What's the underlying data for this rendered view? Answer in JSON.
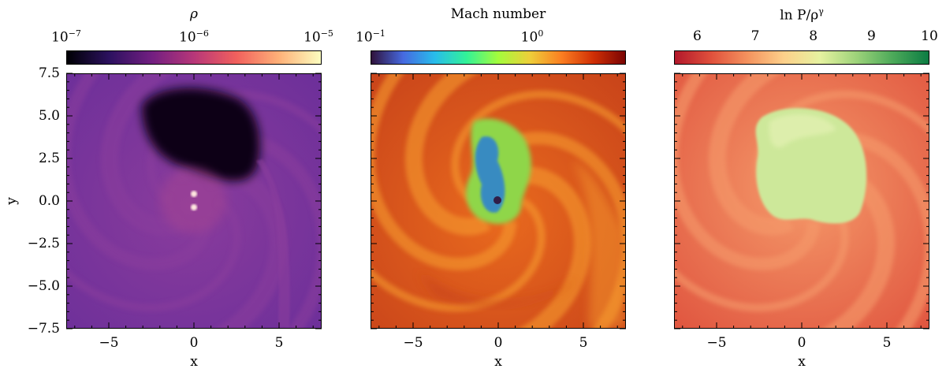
{
  "panels": [
    {
      "colorbar_title": "ρ",
      "colorbar_ticks": [
        {
          "base": "10",
          "exp": "−7"
        },
        {
          "base": "10",
          "exp": "−6"
        },
        {
          "base": "10",
          "exp": "−5"
        }
      ],
      "colormap": [
        "#000004",
        "#2c115f",
        "#721f81",
        "#b73779",
        "#f1605d",
        "#feb078",
        "#fcfdbf"
      ],
      "field_colors": {
        "background": "#6c2f9a",
        "arm": "#8a3c9c",
        "void": "#0c0618",
        "halo": "#b24a8e",
        "core": "#ffe8e0"
      },
      "xlabel": "x",
      "xticks": [
        "−5",
        "0",
        "5"
      ]
    },
    {
      "colorbar_title": "Mach number",
      "colorbar_ticks": [
        {
          "base": "10",
          "exp": "−1"
        },
        {
          "base": "10",
          "exp": "0"
        }
      ],
      "colormap": [
        "#30123b",
        "#4669e0",
        "#28bceb",
        "#32f298",
        "#a4fc3c",
        "#eecf3a",
        "#fb7e21",
        "#d02f05",
        "#7a0403"
      ],
      "field_colors": {
        "background": "#e96a1e",
        "arm": "#f59a2e",
        "dark": "#c8431a",
        "green": "#8fd64a",
        "blue": "#2b7fd6"
      },
      "xlabel": "x",
      "xticks": [
        "−5",
        "0",
        "5"
      ]
    },
    {
      "colorbar_title": "ln P/ρ",
      "colorbar_title_sup": "γ",
      "colorbar_ticks": [
        {
          "base": "6"
        },
        {
          "base": "7"
        },
        {
          "base": "8"
        },
        {
          "base": "9"
        },
        {
          "base": "10"
        }
      ],
      "colormap": [
        "#b2182b",
        "#e0503c",
        "#f4925e",
        "#fdd08a",
        "#e6f2a0",
        "#9ed37a",
        "#4daa5a",
        "#0c7c43"
      ],
      "field_colors": {
        "background": "#e0553f",
        "arm": "#f59a6a",
        "blob": "#cde89a",
        "blob_light": "#e8f3b8"
      },
      "xlabel": "x",
      "xticks": [
        "−5",
        "0",
        "5"
      ]
    }
  ],
  "ylabel": "y",
  "yticks": [
    "7.5",
    "5.0",
    "2.5",
    "0.0",
    "−2.5",
    "−5.0",
    "−7.5"
  ],
  "axis_range": [
    -7.5,
    7.5
  ],
  "xtick_values": [
    -5,
    0,
    5
  ],
  "ytick_values": [
    7.5,
    5.0,
    2.5,
    0.0,
    -2.5,
    -5.0,
    -7.5
  ]
}
